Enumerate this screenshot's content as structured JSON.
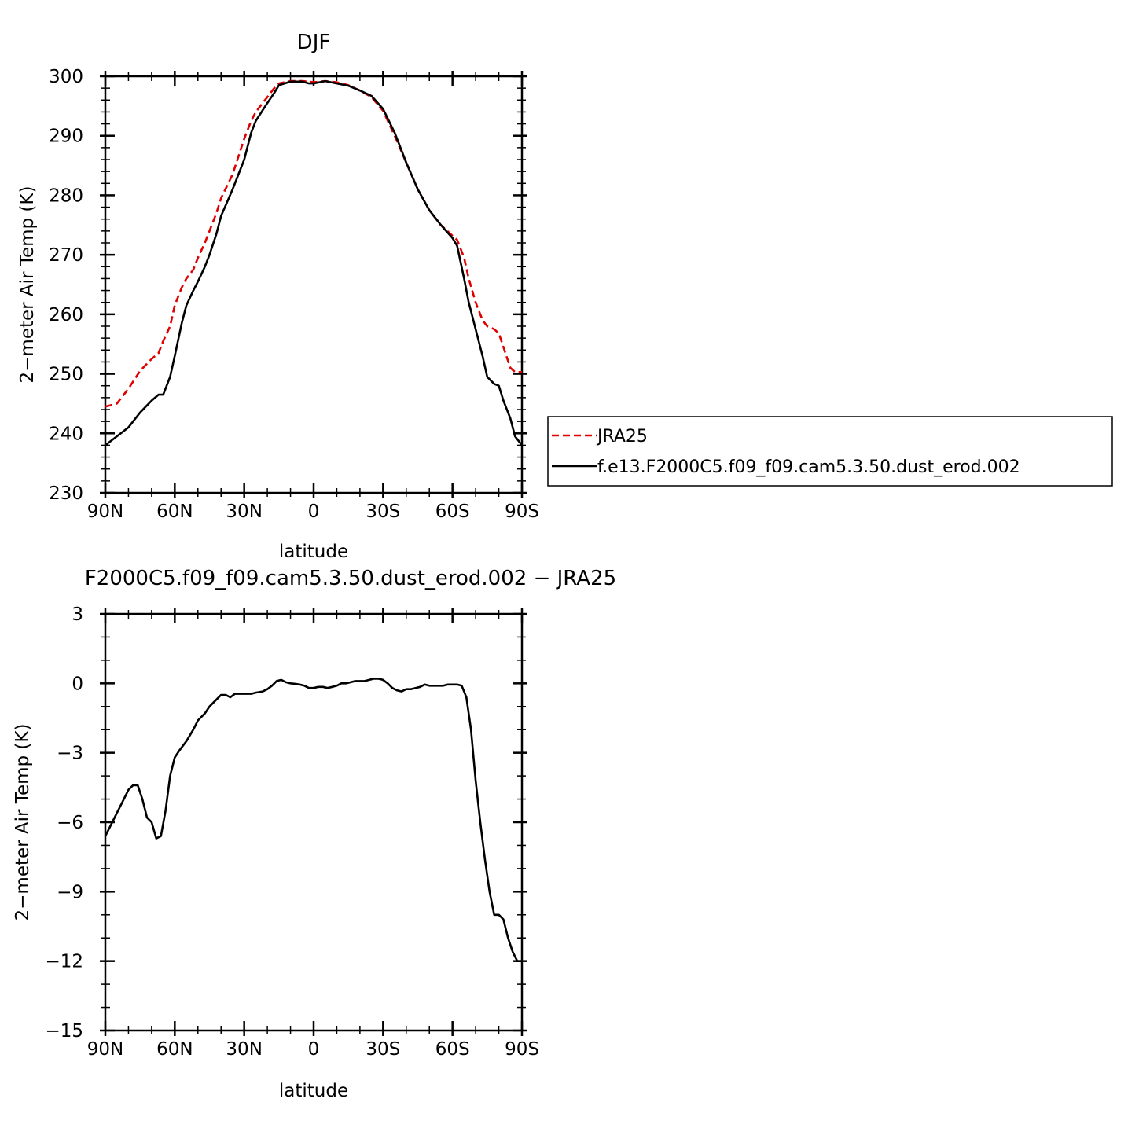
{
  "chart_data": [
    {
      "type": "line",
      "title": "DJF",
      "xlabel": "latitude",
      "ylabel": "2−meter Air Temp (K)",
      "xlim": [
        90,
        -90
      ],
      "ylim": [
        230,
        300
      ],
      "x_ticks": [
        90,
        60,
        30,
        0,
        -30,
        -60,
        -90
      ],
      "x_tick_labels": [
        "90N",
        "60N",
        "30N",
        "0",
        "30S",
        "60S",
        "90S"
      ],
      "y_ticks": [
        230,
        240,
        250,
        260,
        270,
        280,
        290,
        300
      ],
      "y_tick_labels": [
        "230",
        "240",
        "250",
        "260",
        "270",
        "280",
        "290",
        "300"
      ],
      "x": [
        90,
        85,
        80,
        75,
        70,
        67,
        65,
        62,
        60,
        57,
        55,
        52,
        50,
        47,
        45,
        42,
        40,
        35,
        30,
        27,
        25,
        20,
        17,
        15,
        10,
        5,
        2,
        0,
        -5,
        -10,
        -15,
        -20,
        -25,
        -30,
        -35,
        -40,
        -45,
        -50,
        -55,
        -60,
        -62,
        -65,
        -67,
        -70,
        -73,
        -75,
        -78,
        -80,
        -82,
        -85,
        -87,
        -90
      ],
      "series": [
        {
          "name": "JRA25",
          "color": "#e00000",
          "dash": true,
          "values": [
            244.5,
            245.0,
            247.5,
            250.5,
            252.5,
            253.5,
            255.5,
            258.0,
            261.5,
            264.5,
            266.0,
            267.5,
            269.5,
            272.0,
            274.0,
            277.0,
            279.5,
            283.5,
            289.5,
            292.5,
            294.0,
            296.5,
            298.0,
            298.8,
            299.2,
            299.2,
            299.1,
            299.0,
            299.2,
            299.0,
            298.5,
            297.6,
            296.5,
            294.2,
            290.0,
            285.5,
            281.0,
            277.5,
            275.0,
            273.2,
            272.5,
            269.5,
            266.0,
            262.0,
            259.0,
            258.0,
            257.5,
            256.8,
            254.5,
            251.0,
            250.3,
            250.3
          ]
        },
        {
          "name": "f.e13.F2000C5.f09_f09.cam5.3.50.dust_erod.002",
          "color": "#000000",
          "dash": false,
          "values": [
            238.0,
            239.5,
            241.0,
            243.5,
            245.5,
            246.5,
            246.5,
            249.5,
            253.0,
            258.5,
            261.5,
            264.0,
            265.5,
            268.0,
            270.0,
            273.5,
            276.5,
            281.0,
            286.0,
            290.5,
            292.5,
            295.5,
            297.2,
            298.5,
            299.1,
            299.1,
            298.8,
            298.8,
            299.2,
            298.8,
            298.4,
            297.6,
            296.7,
            294.5,
            290.5,
            285.5,
            281.0,
            277.5,
            275.0,
            272.8,
            271.5,
            266.0,
            262.0,
            257.5,
            253.0,
            249.5,
            248.3,
            248.0,
            245.5,
            242.5,
            239.5,
            238.0
          ]
        }
      ],
      "legend": {
        "placement": "right",
        "entries": [
          "JRA25",
          "f.e13.F2000C5.f09_f09.cam5.3.50.dust_erod.002"
        ]
      },
      "grid": false
    },
    {
      "type": "line",
      "title": "F2000C5.f09_f09.cam5.3.50.dust_erod.002 − JRA25",
      "xlabel": "latitude",
      "ylabel": "2−meter Air Temp (K)",
      "xlim": [
        90,
        -90
      ],
      "ylim": [
        -15,
        3
      ],
      "x_ticks": [
        90,
        60,
        30,
        0,
        -30,
        -60,
        -90
      ],
      "x_tick_labels": [
        "90N",
        "60N",
        "30N",
        "0",
        "30S",
        "60S",
        "90S"
      ],
      "y_ticks": [
        -15,
        -12,
        -9,
        -6,
        -3,
        0,
        3
      ],
      "y_tick_labels": [
        "−15",
        "−12",
        "−9",
        "−6",
        "−3",
        "0",
        "3"
      ],
      "x": [
        90,
        86,
        84,
        82,
        80,
        78,
        76,
        74,
        72,
        70,
        68,
        66,
        64,
        62,
        60,
        58,
        55,
        52,
        50,
        47,
        45,
        42,
        40,
        38,
        36,
        34,
        32,
        30,
        27,
        25,
        22,
        20,
        18,
        16,
        14,
        12,
        10,
        8,
        6,
        4,
        2,
        0,
        -2,
        -4,
        -6,
        -8,
        -10,
        -12,
        -14,
        -16,
        -18,
        -20,
        -22,
        -24,
        -26,
        -28,
        -30,
        -32,
        -34,
        -36,
        -38,
        -40,
        -42,
        -44,
        -46,
        -48,
        -50,
        -52,
        -54,
        -56,
        -58,
        -60,
        -62,
        -64,
        -66,
        -68,
        -70,
        -72,
        -74,
        -76,
        -78,
        -80,
        -82,
        -84,
        -86,
        -88,
        -90
      ],
      "series": [
        {
          "name": "",
          "color": "#000000",
          "dash": false,
          "values": [
            -6.6,
            -5.8,
            -5.4,
            -5.0,
            -4.6,
            -4.4,
            -4.4,
            -5.0,
            -5.8,
            -6.0,
            -6.7,
            -6.6,
            -5.5,
            -4.0,
            -3.2,
            -2.9,
            -2.5,
            -2.0,
            -1.6,
            -1.3,
            -1.0,
            -0.7,
            -0.5,
            -0.5,
            -0.6,
            -0.45,
            -0.45,
            -0.45,
            -0.45,
            -0.4,
            -0.35,
            -0.25,
            -0.1,
            0.1,
            0.15,
            0.05,
            0.0,
            -0.02,
            -0.05,
            -0.1,
            -0.2,
            -0.2,
            -0.15,
            -0.15,
            -0.2,
            -0.15,
            -0.1,
            0.0,
            0.0,
            0.05,
            0.1,
            0.1,
            0.1,
            0.15,
            0.2,
            0.2,
            0.15,
            0.0,
            -0.2,
            -0.3,
            -0.35,
            -0.25,
            -0.25,
            -0.2,
            -0.15,
            -0.05,
            -0.1,
            -0.1,
            -0.1,
            -0.1,
            -0.05,
            -0.05,
            -0.05,
            -0.1,
            -0.6,
            -2.0,
            -4.2,
            -6.0,
            -7.6,
            -9.0,
            -10.0,
            -10.0,
            -10.2,
            -11.0,
            -11.6,
            -12.0,
            -12.0
          ]
        }
      ],
      "grid": false
    }
  ]
}
